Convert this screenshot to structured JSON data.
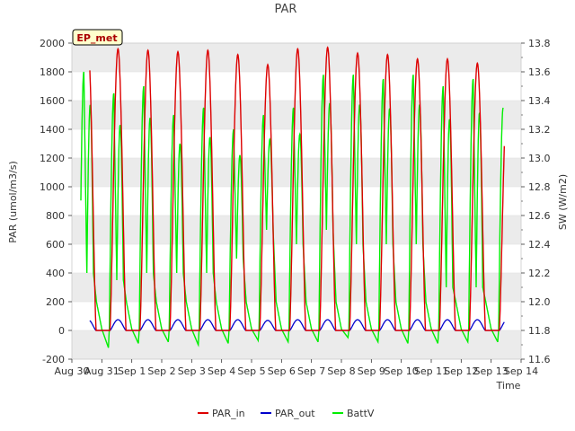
{
  "chart_data": {
    "type": "line",
    "title": "PAR",
    "xlabel": "Time",
    "ylabel": "PAR (umol/m3/s)",
    "y2label": "SW (W/m2)",
    "badge": "EP_met",
    "xlim": [
      0,
      15
    ],
    "ylim": [
      -200,
      2000
    ],
    "y2lim": [
      11.6,
      13.8
    ],
    "x_ticks": [
      0,
      1,
      2,
      3,
      4,
      5,
      6,
      7,
      8,
      9,
      10,
      11,
      12,
      13,
      14,
      15
    ],
    "x_tick_labels": [
      "Aug 30",
      "Aug 31",
      "Sep 1",
      "Sep 2",
      "Sep 3",
      "Sep 4",
      "Sep 5",
      "Sep 6",
      "Sep 7",
      "Sep 8",
      "Sep 9",
      "Sep 10",
      "Sep 11",
      "Sep 12",
      "Sep 13",
      "Sep 14"
    ],
    "y_ticks": [
      -200,
      0,
      200,
      400,
      600,
      800,
      1000,
      1200,
      1400,
      1600,
      1800,
      2000
    ],
    "y_tick_labels": [
      "-200",
      "0",
      "200",
      "400",
      "600",
      "800",
      "1000",
      "1200",
      "1400",
      "1600",
      "1800",
      "2000"
    ],
    "y2_ticks": [
      11.6,
      11.8,
      12.0,
      12.2,
      12.4,
      12.6,
      12.8,
      13.0,
      13.2,
      13.4,
      13.6,
      13.8
    ],
    "y2_tick_labels": [
      "11.6",
      "11.8",
      "12.0",
      "12.2",
      "12.4",
      "12.6",
      "12.8",
      "13.0",
      "13.2",
      "13.4",
      "13.6",
      "13.8"
    ],
    "grid": "horizontal bands",
    "legend_position": "bottom-center",
    "series": [
      {
        "name": "PAR_in",
        "color": "#dd0000",
        "axis": "left",
        "days": [
          0,
          1,
          2,
          3,
          4,
          5,
          6,
          7,
          8,
          9,
          10,
          11,
          12,
          13,
          14
        ],
        "peaks": [
          1975,
          1960,
          1950,
          1940,
          1950,
          1920,
          1850,
          1960,
          1970,
          1930,
          1920,
          1890,
          1890,
          1860,
          1650
        ]
      },
      {
        "name": "PAR_out",
        "color": "#0000cc",
        "axis": "left",
        "days": [
          0,
          1,
          2,
          3,
          4,
          5,
          6,
          7,
          8,
          9,
          10,
          11,
          12,
          13,
          14
        ],
        "peaks": [
          75,
          75,
          75,
          75,
          75,
          75,
          70,
          75,
          75,
          75,
          75,
          75,
          75,
          75,
          75
        ]
      },
      {
        "name": "BattV",
        "color": "#00ee00",
        "axis": "right",
        "days": [
          0,
          1,
          2,
          3,
          4,
          5,
          6,
          7,
          8,
          9,
          10,
          11,
          12,
          13,
          14
        ],
        "peaks": [
          13.6,
          13.45,
          13.5,
          13.3,
          13.35,
          13.2,
          13.3,
          13.35,
          13.58,
          13.58,
          13.55,
          13.58,
          13.5,
          13.55,
          13.35
        ],
        "plateaus": [
          12.2,
          12.15,
          12.2,
          12.2,
          12.2,
          12.3,
          12.5,
          12.4,
          12.5,
          12.4,
          12.4,
          12.4,
          12.1,
          12.1,
          12.2
        ],
        "troughs": [
          11.73,
          11.68,
          11.71,
          11.72,
          11.7,
          11.71,
          11.73,
          11.72,
          11.72,
          11.75,
          11.72,
          11.71,
          11.71,
          11.72,
          11.72
        ]
      }
    ]
  }
}
